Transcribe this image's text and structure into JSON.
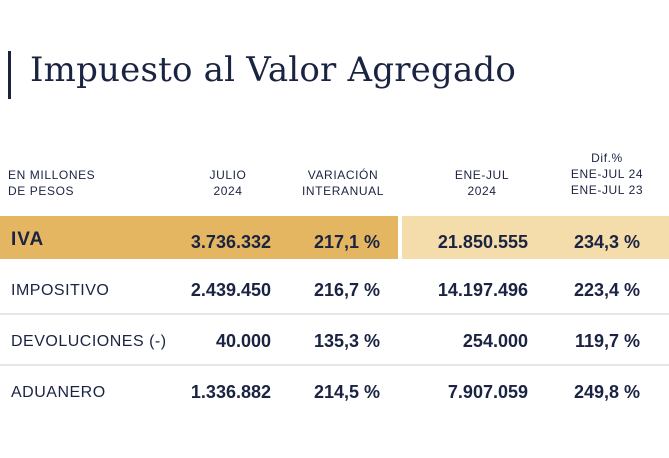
{
  "title": "Impuesto al Valor Agregado",
  "headers": {
    "units": [
      "EN MILLONES",
      "DE PESOS"
    ],
    "month": [
      "JULIO",
      "2024"
    ],
    "variation": [
      "VARIACIÓN",
      "INTERANUAL"
    ],
    "period": [
      "ENE-JUL",
      "2024"
    ],
    "diff": [
      "Dif.%",
      "ENE-JUL 24",
      "ENE-JUL 23"
    ]
  },
  "rows": [
    {
      "label": "IVA",
      "julio": "3.736.332",
      "variacion": "217,1 %",
      "ene_jul": "21.850.555",
      "dif": "234,3 %"
    },
    {
      "label": "IMPOSITIVO",
      "julio": "2.439.450",
      "variacion": "216,7 %",
      "ene_jul": "14.197.496",
      "dif": "223,4 %"
    },
    {
      "label": "DEVOLUCIONES (-)",
      "julio": "40.000",
      "variacion": "135,3 %",
      "ene_jul": "254.000",
      "dif": "119,7 %"
    },
    {
      "label": "ADUANERO",
      "julio": "1.336.882",
      "variacion": "214,5 %",
      "ene_jul": "7.907.059",
      "dif": "249,8 %"
    }
  ],
  "colors": {
    "text": "#1a2342",
    "highlight_primary": "#e5b662",
    "highlight_secondary": "#f5dcab",
    "separator": "#e6e6e9"
  }
}
